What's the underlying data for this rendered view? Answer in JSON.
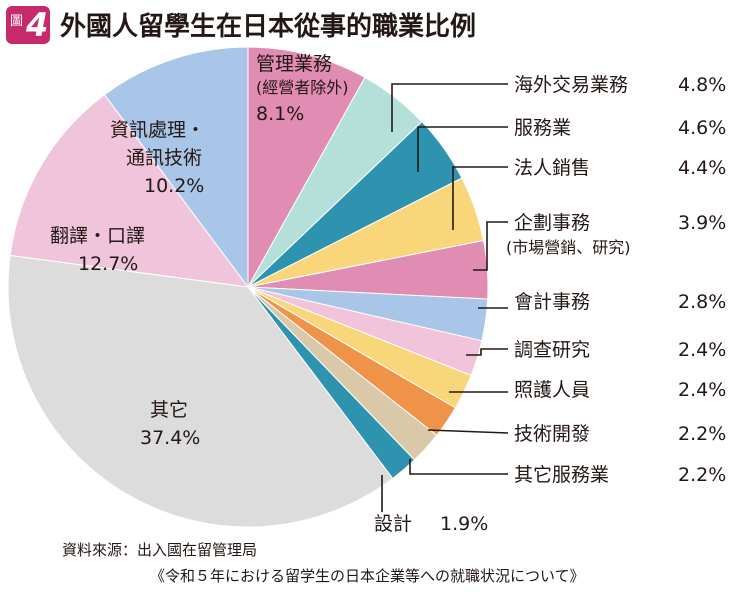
{
  "badge": {
    "label": "圖",
    "number": "4",
    "color": "#c72a6a"
  },
  "title": "外國人留學生在日本從事的職業比例",
  "chart_data": {
    "type": "pie",
    "title": "外國人留學生在日本從事的職業比例",
    "slices": [
      {
        "label": "管理業務",
        "note": "(經營者除外)",
        "value": 8.1,
        "value_label": "8.1%",
        "color": "#e08cb3"
      },
      {
        "label": "海外交易業務",
        "value": 4.8,
        "value_label": "4.8%",
        "color": "#b5e0da"
      },
      {
        "label": "服務業",
        "value": 4.6,
        "value_label": "4.6%",
        "color": "#2e93ae"
      },
      {
        "label": "法人銷售",
        "value": 4.4,
        "value_label": "4.4%",
        "color": "#f9d67a"
      },
      {
        "label": "企劃事務",
        "note": "(市場營銷、研究)",
        "value": 3.9,
        "value_label": "3.9%",
        "color": "#e08cb3"
      },
      {
        "label": "會計事務",
        "value": 2.8,
        "value_label": "2.8%",
        "color": "#a9c6e8"
      },
      {
        "label": "調查研究",
        "value": 2.4,
        "value_label": "2.4%",
        "color": "#f2c4dc"
      },
      {
        "label": "照護人員",
        "value": 2.4,
        "value_label": "2.4%",
        "color": "#f9d67a"
      },
      {
        "label": "技術開發",
        "value": 2.2,
        "value_label": "2.2%",
        "color": "#ee9347"
      },
      {
        "label": "其它服務業",
        "value": 2.2,
        "value_label": "2.2%",
        "color": "#d9c9a8"
      },
      {
        "label": "設計",
        "value": 1.9,
        "value_label": "1.9%",
        "color": "#2e93ae"
      },
      {
        "label": "其它",
        "value": 37.4,
        "value_label": "37.4%",
        "color": "#dcdcdc"
      },
      {
        "label": "翻譯・口譯",
        "value": 12.7,
        "value_label": "12.7%",
        "color": "#f0c4da"
      },
      {
        "label": "資訊處理・通訊技術",
        "label_lines": [
          "資訊處理・",
          "通訊技術"
        ],
        "value": 10.2,
        "value_label": "10.2%",
        "color": "#a9c6e8"
      }
    ],
    "start_angle_deg": 0,
    "direction": "clockwise"
  },
  "source": {
    "line1": "資料來源：出入國在留管理局",
    "line2": "《令和５年における留学生の日本企業等への就職状況について》"
  }
}
